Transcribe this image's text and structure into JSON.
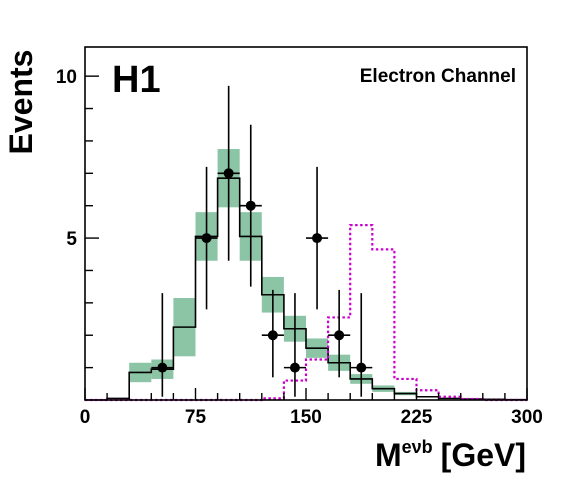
{
  "chart_data": {
    "type": "histogram",
    "experiment_label": "H1",
    "channel_label": "Electron Channel",
    "ylabel": "Events",
    "xlabel_main": "M",
    "xlabel_superscript": "eνb",
    "xlabel_unit": "[GeV]",
    "xlim": [
      0,
      300
    ],
    "ylim": [
      0,
      10.9
    ],
    "xticks": [
      0,
      75,
      150,
      225,
      300
    ],
    "yticks": [
      5,
      10
    ],
    "bin_edges": [
      0,
      15,
      30,
      45,
      60,
      75,
      90,
      105,
      120,
      135,
      150,
      165,
      180,
      195,
      210,
      225,
      240,
      255,
      270,
      285,
      300
    ],
    "series": [
      {
        "kind": "sm_expectation",
        "style": "solid",
        "color": "#000000",
        "values": [
          0.0,
          0.05,
          0.85,
          0.95,
          2.25,
          5.05,
          6.85,
          5.05,
          3.25,
          2.2,
          1.6,
          1.15,
          0.65,
          0.35,
          0.2,
          0.1,
          0.05,
          0.03,
          0.02,
          0.01
        ],
        "uncertainty": [
          0.0,
          0.0,
          0.3,
          0.3,
          0.9,
          0.75,
          0.9,
          0.75,
          0.55,
          0.4,
          0.3,
          0.25,
          0.15,
          0.1,
          0.05,
          0.0,
          0.0,
          0.0,
          0.0,
          0.0
        ],
        "band_color": "#8cc5a6"
      },
      {
        "kind": "signal",
        "style": "dotted",
        "color": "#cc00cc",
        "values": [
          0.0,
          0.0,
          0.0,
          0.0,
          0.0,
          0.0,
          0.0,
          0.0,
          0.05,
          0.6,
          1.25,
          2.55,
          5.4,
          4.65,
          0.65,
          0.3,
          0.1,
          0.03,
          0.0,
          0.0
        ]
      },
      {
        "kind": "data",
        "color": "#000000",
        "points": [
          {
            "x": 52.5,
            "y": 1,
            "yerr_lo": 0.9,
            "yerr_hi": 2.3
          },
          {
            "x": 82.5,
            "y": 5,
            "yerr_lo": 2.2,
            "yerr_hi": 2.2
          },
          {
            "x": 97.5,
            "y": 7,
            "yerr_lo": 2.7,
            "yerr_hi": 2.7
          },
          {
            "x": 112.5,
            "y": 6,
            "yerr_lo": 2.5,
            "yerr_hi": 2.5
          },
          {
            "x": 127.5,
            "y": 2,
            "yerr_lo": 1.3,
            "yerr_hi": 1.4
          },
          {
            "x": 142.5,
            "y": 1,
            "yerr_lo": 0.9,
            "yerr_hi": 2.3
          },
          {
            "x": 157.5,
            "y": 5,
            "yerr_lo": 2.2,
            "yerr_hi": 2.2
          },
          {
            "x": 172.5,
            "y": 2,
            "yerr_lo": 1.3,
            "yerr_hi": 1.4
          },
          {
            "x": 187.5,
            "y": 1,
            "yerr_lo": 0.9,
            "yerr_hi": 2.3
          }
        ]
      }
    ]
  }
}
